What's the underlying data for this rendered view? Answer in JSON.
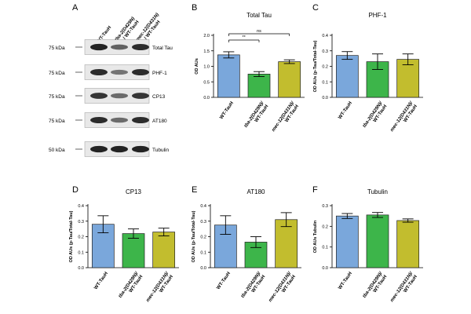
{
  "figure": {
    "colors": {
      "blue": "#7aa7db",
      "green": "#3db54a",
      "olive": "#c2bd2e",
      "axis": "#000000"
    }
  },
  "blot": {
    "letter": "A",
    "lanes": [
      {
        "label": "WT-TauH",
        "italic": "",
        "rest": ""
      },
      {
        "label": "",
        "italic": "tba-2(D429N)",
        "rest": "/ WT-TauH"
      },
      {
        "label": "",
        "italic": "mec-12(D431N)",
        "rest": "/ WT-TauH"
      }
    ],
    "rows": [
      {
        "name": "Total Tau",
        "marker": "75 kDa"
      },
      {
        "name": "PHF-1",
        "marker": "75 kDa"
      },
      {
        "name": "CP13",
        "marker": "75 kDa"
      },
      {
        "name": "AT180",
        "marker": "75 kDa"
      },
      {
        "name": "Tubulin",
        "marker": "50 kDa"
      }
    ],
    "band_intensity": [
      [
        1.0,
        0.65,
        0.95
      ],
      [
        0.95,
        0.55,
        0.95
      ],
      [
        0.9,
        0.6,
        0.9
      ],
      [
        0.95,
        0.6,
        0.95
      ],
      [
        1.0,
        1.0,
        1.0
      ]
    ]
  },
  "chart_data": [
    {
      "id": "B",
      "type": "bar",
      "title": "Total Tau",
      "ylabel": "OD AUs",
      "categories": [
        "WT-TauH",
        "tba-2(D429N)/ WT-TauH",
        "mec-12(D431N)/ WT-TauH"
      ],
      "values": [
        1.37,
        0.75,
        1.15
      ],
      "errors": [
        0.1,
        0.08,
        0.06
      ],
      "ylim": [
        0,
        2.0
      ],
      "yticks": [
        "0.0",
        "0.5",
        "1.0",
        "1.5",
        "2.0"
      ],
      "annotations": [
        {
          "from": 0,
          "to": 2,
          "label": "ns"
        },
        {
          "from": 0,
          "to": 1,
          "label": "**"
        }
      ]
    },
    {
      "id": "C",
      "type": "bar",
      "title": "PHF-1",
      "ylabel": "OD AUs (p-Tau/Total-Tau)",
      "categories": [
        "WT-TauH",
        "tba-2(D429N)/ WT-TauH",
        "mec-12(D431N)/ WT-TauH"
      ],
      "values": [
        0.27,
        0.23,
        0.245
      ],
      "errors": [
        0.025,
        0.05,
        0.035
      ],
      "ylim": [
        0,
        0.4
      ],
      "yticks": [
        "0.0",
        "0.1",
        "0.2",
        "0.3",
        "0.4"
      ],
      "annotations": []
    },
    {
      "id": "D",
      "type": "bar",
      "title": "CP13",
      "ylabel": "OD AUs (p-Tau/Total-Tau)",
      "categories": [
        "WT-TauH",
        "tba-2(D429N)/ WT-TauH",
        "mec-12(D431N)/ WT-TauH"
      ],
      "values": [
        0.28,
        0.22,
        0.23
      ],
      "errors": [
        0.055,
        0.03,
        0.025
      ],
      "ylim": [
        0,
        0.4
      ],
      "yticks": [
        "0.0",
        "0.1",
        "0.2",
        "0.3",
        "0.4"
      ],
      "annotations": []
    },
    {
      "id": "E",
      "type": "bar",
      "title": "AT180",
      "ylabel": "OD AUs (p-Tau/Total-Tau)",
      "categories": [
        "WT-TauH",
        "tba-2(D429N)/ WT-TauH",
        "mec-12(D431N)/ WT-TauH"
      ],
      "values": [
        0.275,
        0.165,
        0.31
      ],
      "errors": [
        0.06,
        0.035,
        0.045
      ],
      "ylim": [
        0,
        0.4
      ],
      "yticks": [
        "0.0",
        "0.1",
        "0.2",
        "0.3",
        "0.4"
      ],
      "annotations": []
    },
    {
      "id": "F",
      "type": "bar",
      "title": "Tubulin",
      "ylabel": "OD AUs Tubulin",
      "categories": [
        "WT-TauH",
        "tba-2(D429N)/ WT-TauH",
        "mec-12(D431N)/ WT-TauH"
      ],
      "values": [
        0.25,
        0.255,
        0.228
      ],
      "errors": [
        0.012,
        0.012,
        0.008
      ],
      "ylim": [
        0,
        0.3
      ],
      "yticks": [
        "0.0",
        "0.1",
        "0.2",
        "0.3"
      ],
      "annotations": []
    }
  ]
}
